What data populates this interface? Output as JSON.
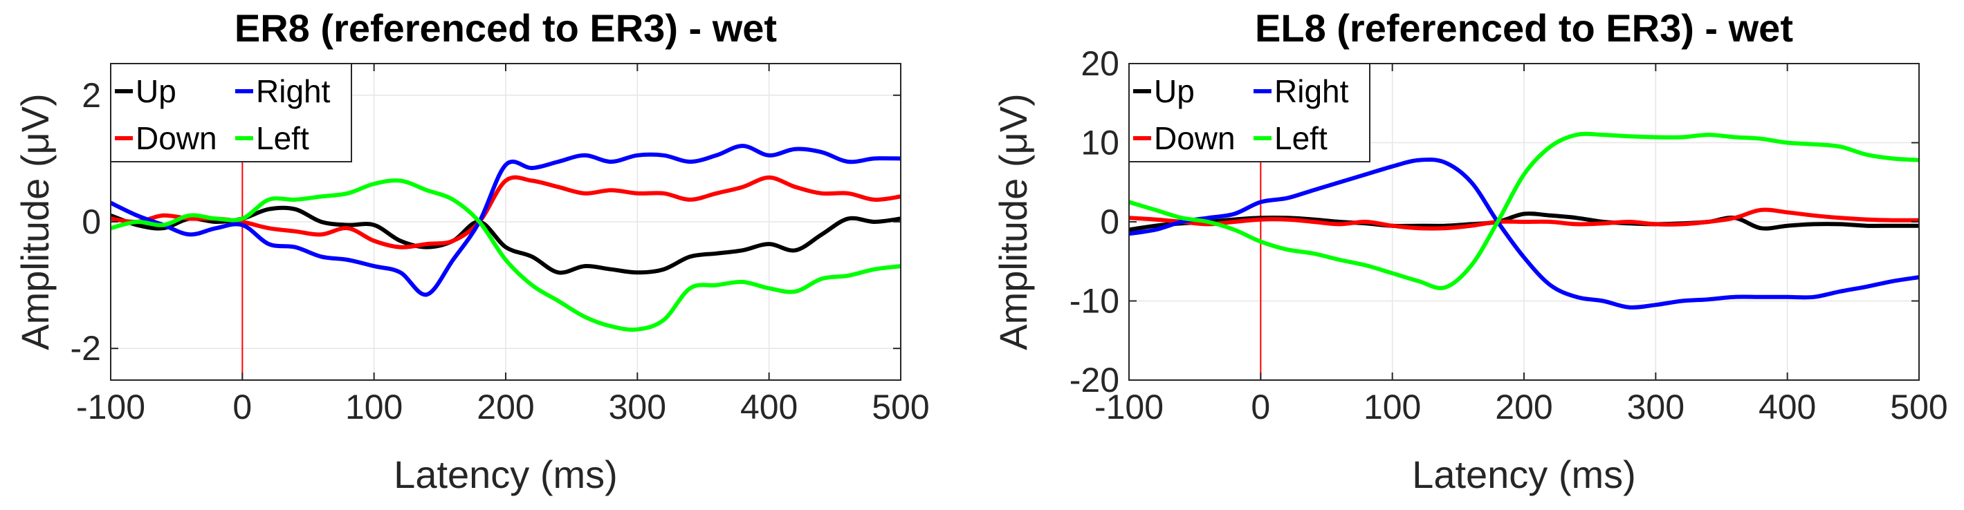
{
  "chart_data": [
    {
      "type": "line",
      "title": "ER8 (referenced to ER3) - wet",
      "xlabel": "Latency (ms)",
      "ylabel": "Amplitude (μV)",
      "xlim": [
        -100,
        500
      ],
      "ylim": [
        -2.5,
        2.5
      ],
      "xticks": [
        -100,
        0,
        100,
        200,
        300,
        400,
        500
      ],
      "xtick_labels": [
        "-100",
        "0",
        "100",
        "200",
        "300",
        "400",
        "500"
      ],
      "yticks": [
        -2,
        0,
        2
      ],
      "ytick_labels": [
        "-2",
        "0",
        "2"
      ],
      "grid": true,
      "legend": "top-left",
      "marker_line_x": 0,
      "marker_line_color": "#ff0000",
      "x": [
        -100,
        -80,
        -60,
        -40,
        -20,
        0,
        20,
        40,
        60,
        80,
        100,
        120,
        140,
        160,
        180,
        200,
        220,
        240,
        260,
        280,
        300,
        320,
        340,
        360,
        380,
        400,
        420,
        440,
        460,
        480,
        500
      ],
      "series": [
        {
          "name": "Up",
          "color": "#000000",
          "values": [
            0.1,
            -0.05,
            -0.1,
            0.05,
            0.0,
            0.05,
            0.2,
            0.2,
            0.0,
            -0.05,
            -0.05,
            -0.3,
            -0.4,
            -0.3,
            0.0,
            -0.4,
            -0.55,
            -0.8,
            -0.7,
            -0.75,
            -0.8,
            -0.75,
            -0.55,
            -0.5,
            -0.45,
            -0.35,
            -0.45,
            -0.2,
            0.05,
            0.0,
            0.05
          ]
        },
        {
          "name": "Down",
          "color": "#ff0000",
          "values": [
            0.05,
            0.0,
            0.1,
            0.05,
            0.05,
            0.0,
            -0.1,
            -0.15,
            -0.2,
            -0.1,
            -0.3,
            -0.4,
            -0.35,
            -0.3,
            0.0,
            0.65,
            0.65,
            0.55,
            0.45,
            0.5,
            0.45,
            0.45,
            0.35,
            0.45,
            0.55,
            0.7,
            0.55,
            0.45,
            0.45,
            0.35,
            0.4
          ]
        },
        {
          "name": "Right",
          "color": "#0000ff",
          "values": [
            0.3,
            0.1,
            -0.05,
            -0.2,
            -0.1,
            -0.05,
            -0.35,
            -0.4,
            -0.55,
            -0.6,
            -0.7,
            -0.8,
            -1.15,
            -0.6,
            0.0,
            0.9,
            0.85,
            0.95,
            1.05,
            0.95,
            1.05,
            1.05,
            0.95,
            1.05,
            1.2,
            1.05,
            1.15,
            1.1,
            0.95,
            1.0,
            1.0
          ]
        },
        {
          "name": "Left",
          "color": "#00ff00",
          "values": [
            -0.1,
            0.0,
            -0.05,
            0.1,
            0.05,
            0.05,
            0.35,
            0.35,
            0.4,
            0.45,
            0.6,
            0.65,
            0.5,
            0.35,
            0.0,
            -0.6,
            -1.0,
            -1.25,
            -1.5,
            -1.65,
            -1.7,
            -1.55,
            -1.05,
            -1.0,
            -0.95,
            -1.05,
            -1.1,
            -0.9,
            -0.85,
            -0.75,
            -0.7
          ]
        }
      ]
    },
    {
      "type": "line",
      "title": "EL8 (referenced to ER3) - wet",
      "xlabel": "Latency (ms)",
      "ylabel": "Amplitude (μV)",
      "xlim": [
        -100,
        500
      ],
      "ylim": [
        -20,
        20
      ],
      "xticks": [
        -100,
        0,
        100,
        200,
        300,
        400,
        500
      ],
      "xtick_labels": [
        "-100",
        "0",
        "100",
        "200",
        "300",
        "400",
        "500"
      ],
      "yticks": [
        -20,
        -10,
        0,
        10,
        20
      ],
      "ytick_labels": [
        "-20",
        "-10",
        "0",
        "10",
        "20"
      ],
      "grid": true,
      "legend": "top-left",
      "marker_line_x": 0,
      "marker_line_color": "#ff0000",
      "x": [
        -100,
        -80,
        -60,
        -40,
        -20,
        0,
        20,
        40,
        60,
        80,
        100,
        120,
        140,
        160,
        180,
        200,
        220,
        240,
        260,
        280,
        300,
        320,
        340,
        360,
        380,
        400,
        420,
        440,
        460,
        480,
        500
      ],
      "series": [
        {
          "name": "Up",
          "color": "#000000",
          "values": [
            -1.0,
            -0.5,
            -0.2,
            0.0,
            0.3,
            0.5,
            0.5,
            0.3,
            0.0,
            -0.2,
            -0.5,
            -0.5,
            -0.5,
            -0.3,
            0.0,
            1.0,
            0.8,
            0.5,
            0.0,
            -0.2,
            -0.3,
            -0.2,
            0.0,
            0.5,
            -0.8,
            -0.5,
            -0.3,
            -0.3,
            -0.5,
            -0.5,
            -0.5
          ]
        },
        {
          "name": "Down",
          "color": "#ff0000",
          "values": [
            0.5,
            0.3,
            0.0,
            -0.3,
            0.0,
            0.3,
            0.3,
            0.0,
            -0.3,
            0.0,
            -0.5,
            -0.8,
            -0.8,
            -0.5,
            0.0,
            0.0,
            0.0,
            -0.3,
            -0.2,
            0.0,
            -0.3,
            -0.3,
            0.0,
            0.5,
            1.5,
            1.2,
            0.8,
            0.5,
            0.3,
            0.2,
            0.2
          ]
        },
        {
          "name": "Right",
          "color": "#0000ff",
          "values": [
            -1.5,
            -1.0,
            0.0,
            0.5,
            1.0,
            2.5,
            3.0,
            4.0,
            5.0,
            6.0,
            7.0,
            7.8,
            7.5,
            5.0,
            0.0,
            -4.5,
            -8.0,
            -9.5,
            -10.0,
            -10.8,
            -10.5,
            -10.0,
            -9.8,
            -9.5,
            -9.5,
            -9.5,
            -9.5,
            -8.8,
            -8.2,
            -7.5,
            -7.0
          ]
        },
        {
          "name": "Left",
          "color": "#00ff00",
          "values": [
            2.5,
            1.5,
            0.5,
            0.0,
            -1.0,
            -2.5,
            -3.5,
            -4.0,
            -4.8,
            -5.5,
            -6.5,
            -7.5,
            -8.3,
            -5.5,
            0.0,
            6.0,
            9.5,
            11.0,
            11.0,
            10.8,
            10.7,
            10.7,
            11.0,
            10.7,
            10.5,
            10.0,
            9.8,
            9.5,
            8.5,
            8.0,
            7.8
          ]
        }
      ]
    }
  ]
}
